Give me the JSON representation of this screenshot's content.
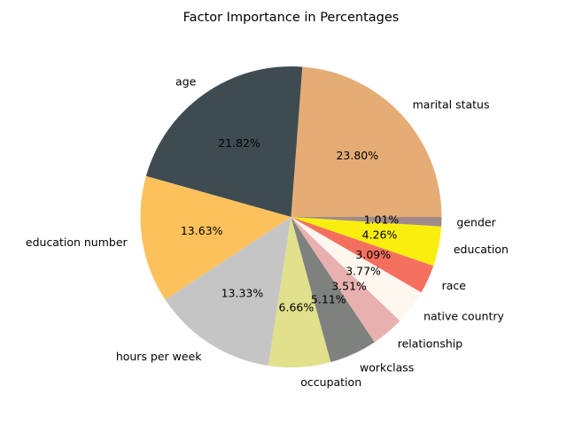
{
  "chart_data": {
    "type": "pie",
    "title": "Factor Importance in Percentages",
    "start_angle_deg": 0,
    "direction": "counterclockwise",
    "categories": [
      "marital status",
      "age",
      "education number",
      "hours per week",
      "occupation",
      "workclass",
      "relationship",
      "native country",
      "race",
      "education",
      "gender"
    ],
    "values": [
      23.8,
      21.82,
      13.63,
      13.33,
      6.66,
      5.11,
      3.51,
      3.77,
      3.09,
      4.26,
      1.01
    ],
    "value_labels": [
      "23.80%",
      "21.82%",
      "13.63%",
      "13.33%",
      "6.66%",
      "5.11%",
      "3.51%",
      "3.77%",
      "3.09%",
      "4.26%",
      "1.01%"
    ],
    "colors": [
      "#E5AC75",
      "#3E4C52",
      "#FDC15C",
      "#C5C5C5",
      "#E0E08D",
      "#7F817F",
      "#E8B1AF",
      "#FDF7EF",
      "#F56F5E",
      "#FAEE0F",
      "#A08A8A"
    ]
  }
}
